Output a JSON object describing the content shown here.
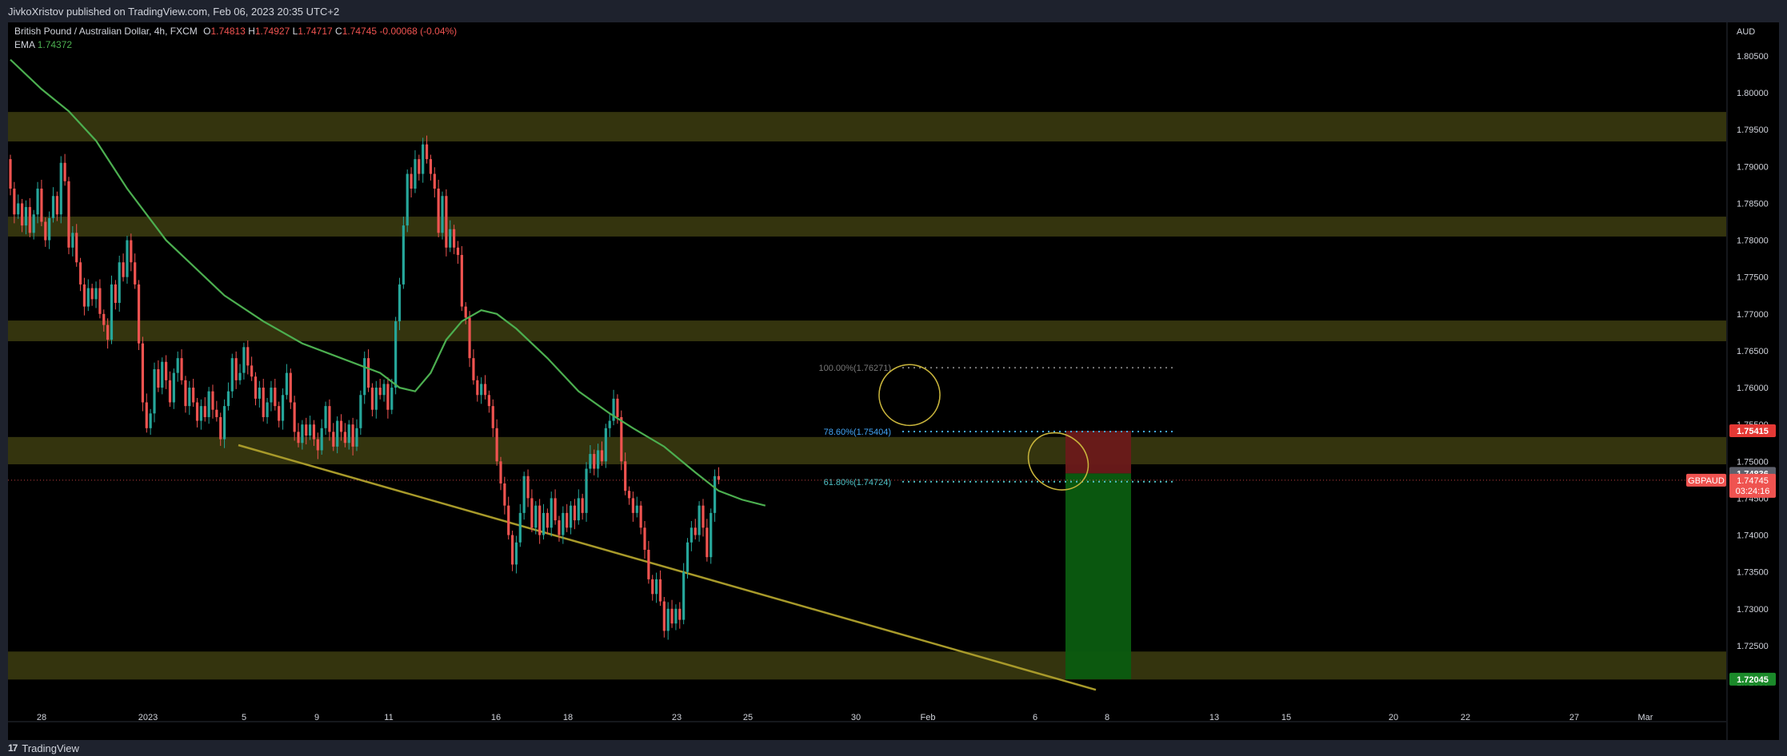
{
  "header": {
    "published_line": "JivkoXristov published on TradingView.com, Feb 06, 2023 20:35 UTC+2"
  },
  "footer": {
    "brand": "TradingView",
    "logo_text": "17"
  },
  "legend": {
    "symbol_line": "British Pound / Australian Dollar, 4h, FXCM",
    "o_label": "O",
    "o_value": "1.74813",
    "h_label": "H",
    "h_value": "1.74927",
    "l_label": "L",
    "l_value": "1.74717",
    "c_label": "C",
    "c_value": "1.74745",
    "change": "-0.00068 (-0.04%)",
    "ema_label": "EMA",
    "ema_value": "1.74372"
  },
  "colors": {
    "background": "#000000",
    "up": "#26a69a",
    "down": "#ef5350",
    "ema": "#4caf50",
    "zone": "#3a3a10",
    "trendline": "#a89a2a",
    "fib_786": "#42a5f5",
    "fib_618": "#4fc3c8",
    "fib_100": "#777777",
    "stop_zone": "#6b1a1a",
    "target_zone": "#0b5c10",
    "circle": "#c8b43c"
  },
  "chart_data": {
    "type": "candlestick",
    "symbol": "GBPAUD",
    "timeframe": "4h",
    "currency": "AUD",
    "y_ticks": [
      "1.80500",
      "1.80000",
      "1.79500",
      "1.79000",
      "1.78500",
      "1.78000",
      "1.77500",
      "1.77000",
      "1.76500",
      "1.76000",
      "1.75500",
      "1.75000",
      "1.74500",
      "1.74000",
      "1.73500",
      "1.73000",
      "1.72500",
      "1.72000"
    ],
    "x_ticks": [
      "28",
      "2023",
      "5",
      "9",
      "11",
      "16",
      "18",
      "23",
      "25",
      "30",
      "Feb",
      "6",
      "8",
      "13",
      "15",
      "20",
      "22",
      "27",
      "Mar"
    ],
    "ylim": [
      1.718,
      1.808
    ],
    "candles_oc": [
      [
        1.791,
        1.787
      ],
      [
        1.787,
        1.7835
      ],
      [
        1.7835,
        1.785
      ],
      [
        1.785,
        1.782
      ],
      [
        1.782,
        1.7845
      ],
      [
        1.7845,
        1.781
      ],
      [
        1.781,
        1.7835
      ],
      [
        1.7835,
        1.787
      ],
      [
        1.787,
        1.7825
      ],
      [
        1.7825,
        1.78
      ],
      [
        1.78,
        1.783
      ],
      [
        1.783,
        1.786
      ],
      [
        1.786,
        1.7835
      ],
      [
        1.7835,
        1.7905
      ],
      [
        1.7905,
        1.788
      ],
      [
        1.788,
        1.779
      ],
      [
        1.779,
        1.781
      ],
      [
        1.781,
        1.777
      ],
      [
        1.777,
        1.774
      ],
      [
        1.774,
        1.771
      ],
      [
        1.771,
        1.7735
      ],
      [
        1.7735,
        1.772
      ],
      [
        1.772,
        1.7735
      ],
      [
        1.7735,
        1.77
      ],
      [
        1.77,
        1.7685
      ],
      [
        1.7685,
        1.7665
      ],
      [
        1.7665,
        1.774
      ],
      [
        1.774,
        1.7715
      ],
      [
        1.7715,
        1.777
      ],
      [
        1.777,
        1.775
      ],
      [
        1.775,
        1.78
      ],
      [
        1.78,
        1.777
      ],
      [
        1.777,
        1.774
      ],
      [
        1.774,
        1.766
      ],
      [
        1.766,
        1.758
      ],
      [
        1.758,
        1.7545
      ],
      [
        1.7545,
        1.7565
      ],
      [
        1.7565,
        1.7625
      ],
      [
        1.7625,
        1.76
      ],
      [
        1.76,
        1.7635
      ],
      [
        1.7635,
        1.761
      ],
      [
        1.761,
        1.758
      ],
      [
        1.758,
        1.762
      ],
      [
        1.762,
        1.764
      ],
      [
        1.764,
        1.761
      ],
      [
        1.761,
        1.7575
      ],
      [
        1.7575,
        1.76
      ],
      [
        1.76,
        1.758
      ],
      [
        1.758,
        1.7555
      ],
      [
        1.7555,
        1.7575
      ],
      [
        1.7575,
        1.756
      ],
      [
        1.756,
        1.7595
      ],
      [
        1.7595,
        1.757
      ],
      [
        1.757,
        1.756
      ],
      [
        1.756,
        1.753
      ],
      [
        1.753,
        1.7575
      ],
      [
        1.7575,
        1.7595
      ],
      [
        1.7595,
        1.764
      ],
      [
        1.764,
        1.761
      ],
      [
        1.761,
        1.762
      ],
      [
        1.762,
        1.7655
      ],
      [
        1.7655,
        1.763
      ],
      [
        1.763,
        1.7615
      ],
      [
        1.7615,
        1.7585
      ],
      [
        1.7585,
        1.76
      ],
      [
        1.76,
        1.756
      ],
      [
        1.756,
        1.758
      ],
      [
        1.758,
        1.76
      ],
      [
        1.76,
        1.7575
      ],
      [
        1.7575,
        1.7555
      ],
      [
        1.7555,
        1.759
      ],
      [
        1.759,
        1.762
      ],
      [
        1.762,
        1.758
      ],
      [
        1.758,
        1.754
      ],
      [
        1.754,
        1.7525
      ],
      [
        1.7525,
        1.755
      ],
      [
        1.755,
        1.7535
      ],
      [
        1.7535,
        1.755
      ],
      [
        1.755,
        1.753
      ],
      [
        1.753,
        1.7515
      ],
      [
        1.7515,
        1.7545
      ],
      [
        1.7545,
        1.7575
      ],
      [
        1.7575,
        1.754
      ],
      [
        1.754,
        1.752
      ],
      [
        1.752,
        1.7555
      ],
      [
        1.7555,
        1.754
      ],
      [
        1.754,
        1.7525
      ],
      [
        1.7525,
        1.755
      ],
      [
        1.755,
        1.752
      ],
      [
        1.752,
        1.7545
      ],
      [
        1.7545,
        1.759
      ],
      [
        1.759,
        1.764
      ],
      [
        1.764,
        1.76
      ],
      [
        1.76,
        1.757
      ],
      [
        1.757,
        1.76
      ],
      [
        1.76,
        1.759
      ],
      [
        1.759,
        1.7605
      ],
      [
        1.7605,
        1.757
      ],
      [
        1.757,
        1.76
      ],
      [
        1.76,
        1.769
      ],
      [
        1.769,
        1.774
      ],
      [
        1.774,
        1.782
      ],
      [
        1.782,
        1.789
      ],
      [
        1.789,
        1.787
      ],
      [
        1.787,
        1.791
      ],
      [
        1.791,
        1.789
      ],
      [
        1.789,
        1.793
      ],
      [
        1.793,
        1.791
      ],
      [
        1.791,
        1.789
      ],
      [
        1.789,
        1.787
      ],
      [
        1.787,
        1.781
      ],
      [
        1.781,
        1.786
      ],
      [
        1.786,
        1.779
      ],
      [
        1.779,
        1.7815
      ],
      [
        1.7815,
        1.779
      ],
      [
        1.779,
        1.778
      ],
      [
        1.778,
        1.771
      ],
      [
        1.771,
        1.7695
      ],
      [
        1.7695,
        1.764
      ],
      [
        1.764,
        1.761
      ],
      [
        1.761,
        1.759
      ],
      [
        1.759,
        1.7605
      ],
      [
        1.7605,
        1.759
      ],
      [
        1.759,
        1.7575
      ],
      [
        1.7575,
        1.7545
      ],
      [
        1.7545,
        1.75
      ],
      [
        1.75,
        1.747
      ],
      [
        1.747,
        1.744
      ],
      [
        1.744,
        1.74
      ],
      [
        1.74,
        1.736
      ],
      [
        1.736,
        1.739
      ],
      [
        1.739,
        1.743
      ],
      [
        1.743,
        1.748
      ],
      [
        1.748,
        1.745
      ],
      [
        1.745,
        1.741
      ],
      [
        1.741,
        1.744
      ],
      [
        1.744,
        1.74
      ],
      [
        1.74,
        1.743
      ],
      [
        1.743,
        1.741
      ],
      [
        1.741,
        1.745
      ],
      [
        1.745,
        1.742
      ],
      [
        1.742,
        1.74
      ],
      [
        1.74,
        1.743
      ],
      [
        1.743,
        1.741
      ],
      [
        1.741,
        1.744
      ],
      [
        1.744,
        1.742
      ],
      [
        1.742,
        1.745
      ],
      [
        1.745,
        1.743
      ],
      [
        1.743,
        1.749
      ],
      [
        1.749,
        1.751
      ],
      [
        1.751,
        1.749
      ],
      [
        1.749,
        1.7515
      ],
      [
        1.7515,
        1.75
      ],
      [
        1.75,
        1.7545
      ],
      [
        1.7545,
        1.7555
      ],
      [
        1.7555,
        1.7585
      ],
      [
        1.7585,
        1.756
      ],
      [
        1.756,
        1.75
      ],
      [
        1.75,
        1.746
      ],
      [
        1.746,
        1.745
      ],
      [
        1.745,
        1.743
      ],
      [
        1.743,
        1.744
      ],
      [
        1.744,
        1.741
      ],
      [
        1.741,
        1.738
      ],
      [
        1.738,
        1.734
      ],
      [
        1.734,
        1.732
      ],
      [
        1.732,
        1.734
      ],
      [
        1.734,
        1.731
      ],
      [
        1.731,
        1.727
      ],
      [
        1.727,
        1.73
      ],
      [
        1.73,
        1.728
      ],
      [
        1.728,
        1.73
      ],
      [
        1.73,
        1.7285
      ],
      [
        1.7285,
        1.735
      ],
      [
        1.735,
        1.739
      ],
      [
        1.739,
        1.741
      ],
      [
        1.741,
        1.74
      ],
      [
        1.74,
        1.744
      ],
      [
        1.744,
        1.741
      ],
      [
        1.741,
        1.737
      ],
      [
        1.737,
        1.743
      ],
      [
        1.743,
        1.748
      ],
      [
        1.748,
        1.7475
      ]
    ],
    "ema_points": [
      [
        0,
        1.8045
      ],
      [
        8,
        1.8005
      ],
      [
        15,
        1.7975
      ],
      [
        22,
        1.7935
      ],
      [
        30,
        1.787
      ],
      [
        40,
        1.78
      ],
      [
        55,
        1.7725
      ],
      [
        65,
        1.769
      ],
      [
        75,
        1.766
      ],
      [
        85,
        1.764
      ],
      [
        95,
        1.762
      ],
      [
        100,
        1.76
      ],
      [
        104,
        1.7595
      ],
      [
        108,
        1.762
      ],
      [
        112,
        1.7665
      ],
      [
        116,
        1.769
      ],
      [
        121,
        1.7705
      ],
      [
        125,
        1.77
      ],
      [
        130,
        1.768
      ],
      [
        138,
        1.764
      ],
      [
        146,
        1.7595
      ],
      [
        154,
        1.7565
      ],
      [
        160,
        1.7545
      ],
      [
        168,
        1.752
      ],
      [
        176,
        1.7485
      ],
      [
        182,
        1.746
      ],
      [
        188,
        1.7448
      ],
      [
        194,
        1.744
      ]
    ],
    "zones": [
      [
        1.7934,
        1.7974
      ],
      [
        1.7805,
        1.7832
      ],
      [
        1.7663,
        1.7691
      ],
      [
        1.7496,
        1.7533
      ],
      [
        1.7204,
        1.7242
      ]
    ],
    "trendline": {
      "from": [
        1.7522,
        "Jan 4"
      ],
      "to": [
        1.719,
        "Feb 8"
      ]
    },
    "fib_levels": [
      {
        "label": "100.00%(1.76271)",
        "value": 1.76271
      },
      {
        "label": "78.60%(1.75404)",
        "value": 1.75404
      },
      {
        "label": "61.80%(1.74724)",
        "value": 1.74724
      }
    ],
    "position": {
      "stop": 1.75415,
      "entry": 1.74836,
      "target": 1.72045
    },
    "last_price": {
      "symbol": "GBPAUD",
      "value": "1.74745",
      "countdown": "03:24:16"
    },
    "price_tags": {
      "stop": "1.75415",
      "entry": "1.74836",
      "target": "1.72045"
    }
  }
}
